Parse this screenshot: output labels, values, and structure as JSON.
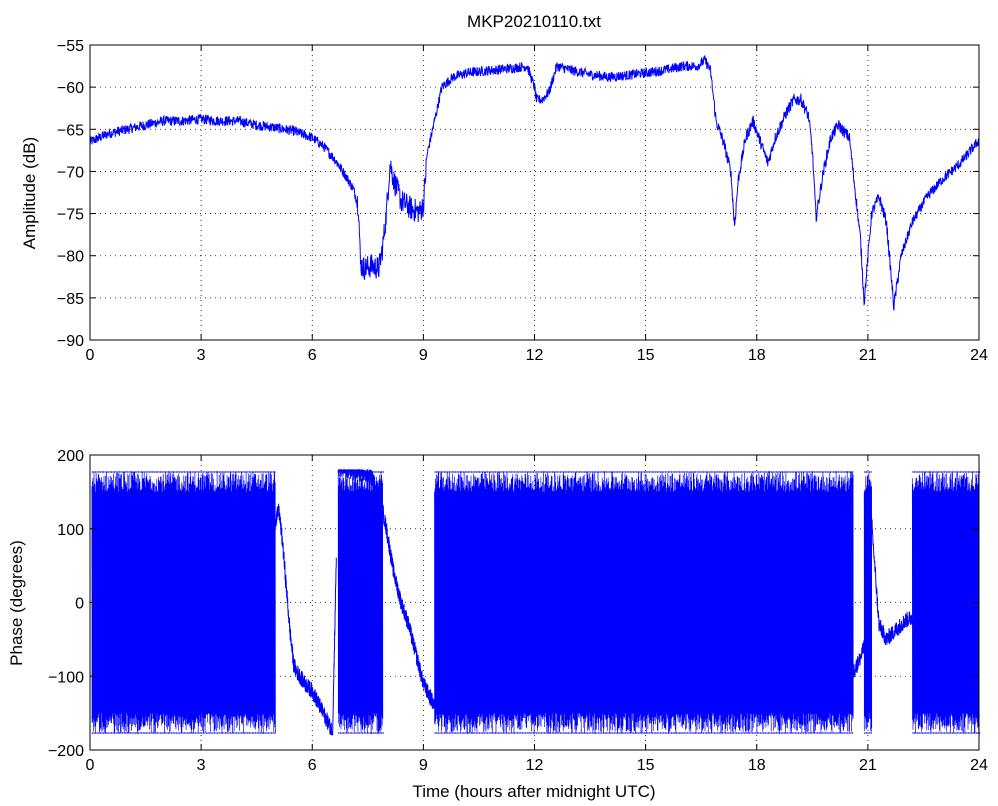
{
  "title": "MKP20210110.txt",
  "chart_data": [
    {
      "type": "line",
      "title": "MKP20210110.txt",
      "xlabel": "",
      "ylabel": "Amplitude (dB)",
      "xlim": [
        0,
        24
      ],
      "ylim": [
        -90,
        -55
      ],
      "xticks": [
        0,
        3,
        6,
        9,
        12,
        15,
        18,
        21,
        24
      ],
      "yticks": [
        -90,
        -85,
        -80,
        -75,
        -70,
        -65,
        -60,
        -55
      ],
      "grid": true,
      "color": "#0000ff",
      "noise_amplitude_db": 0.6,
      "series": [
        {
          "x": [
            0,
            0.5,
            1,
            1.5,
            2,
            2.5,
            3,
            3.5,
            4,
            4.5,
            5,
            5.5,
            6,
            6.3,
            6.6,
            6.9,
            7.1,
            7.25,
            7.3,
            7.4,
            7.6,
            7.8,
            7.9,
            8.0,
            8.1,
            8.2,
            8.4,
            8.7,
            8.9,
            9.0,
            9.1,
            9.3,
            9.5,
            9.8,
            10.2,
            10.8,
            11.3,
            11.8,
            12.0,
            12.05,
            12.2,
            12.4,
            12.6,
            13.0,
            13.5,
            14.0,
            14.5,
            15.0,
            15.5,
            16.0,
            16.4,
            16.6,
            16.75,
            16.9,
            17.1,
            17.3,
            17.4,
            17.5,
            17.7,
            17.9,
            18.1,
            18.3,
            18.5,
            18.8,
            19.0,
            19.2,
            19.4,
            19.5,
            19.6,
            19.8,
            20.0,
            20.2,
            20.5,
            20.8,
            20.9,
            21.1,
            21.3,
            21.5,
            21.7,
            21.9,
            22.2,
            22.6,
            23.0,
            23.5,
            24.0
          ],
          "y": [
            -66.5,
            -65.5,
            -65,
            -64.5,
            -64,
            -64,
            -63.8,
            -64,
            -64,
            -64.5,
            -64.8,
            -65.2,
            -66,
            -67,
            -68.5,
            -70.5,
            -72,
            -74,
            -81,
            -81.5,
            -81.2,
            -81.5,
            -79,
            -75,
            -69,
            -71,
            -73.5,
            -74.5,
            -74.8,
            -74,
            -68,
            -64,
            -60,
            -58.8,
            -58.3,
            -58,
            -57.8,
            -57.5,
            -60,
            -61.5,
            -61.5,
            -60.5,
            -57.5,
            -58,
            -58.5,
            -58.8,
            -58.6,
            -58.3,
            -58,
            -57.5,
            -57.5,
            -56.8,
            -58,
            -64,
            -66.5,
            -70,
            -76.5,
            -71,
            -66,
            -64,
            -66.5,
            -69,
            -66,
            -63,
            -61.5,
            -61.5,
            -63.5,
            -67.5,
            -75.5,
            -70,
            -66,
            -64.5,
            -66,
            -78,
            -85.5,
            -75,
            -73,
            -76,
            -86,
            -80,
            -76,
            -73,
            -71,
            -69,
            -66.3
          ]
        }
      ]
    },
    {
      "type": "line",
      "title": "",
      "xlabel": "Time (hours after midnight UTC)",
      "ylabel": "Phase (degrees)",
      "xlim": [
        0,
        24
      ],
      "ylim": [
        -200,
        200
      ],
      "xticks": [
        0,
        3,
        6,
        9,
        12,
        15,
        18,
        21,
        24
      ],
      "yticks": [
        -200,
        -100,
        0,
        100,
        200
      ],
      "grid": true,
      "color": "#0000ff",
      "wrapped_ranges_hours": [
        [
          0.05,
          5.0
        ],
        [
          6.7,
          7.9
        ],
        [
          9.3,
          20.6
        ],
        [
          20.9,
          21.1
        ],
        [
          22.2,
          24.0
        ]
      ],
      "series": [
        {
          "x": [
            5.0,
            5.1,
            5.2,
            5.3,
            5.4,
            5.5,
            5.6,
            5.8,
            6.0,
            6.2,
            6.4,
            6.55,
            6.7,
            7.0,
            7.3,
            7.6,
            7.8,
            8.0,
            8.2,
            8.4,
            8.6,
            8.8,
            9.0,
            9.2,
            9.3,
            20.6,
            20.7,
            20.8,
            20.9,
            21.1,
            21.2,
            21.3,
            21.5,
            21.8,
            22.0,
            22.2
          ],
          "y": [
            110,
            125,
            80,
            20,
            -40,
            -85,
            -95,
            -110,
            -120,
            -140,
            -160,
            -175,
            180,
            178,
            175,
            170,
            150,
            100,
            40,
            0,
            -30,
            -70,
            -110,
            -130,
            -140,
            -95,
            -85,
            -75,
            -60,
            110,
            40,
            -30,
            -50,
            -35,
            -25,
            -20
          ]
        }
      ]
    }
  ]
}
